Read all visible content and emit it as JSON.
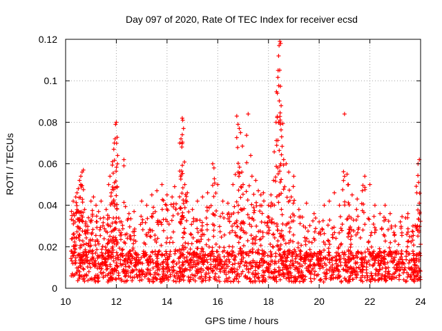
{
  "chart_data": {
    "type": "scatter",
    "title": "Day 097 of 2020, Rate Of TEC Index for receiver ecsd",
    "xlabel": "GPS time / hours",
    "ylabel": "ROTI / TECUs",
    "xlim": [
      10,
      24
    ],
    "ylim": [
      0,
      0.12
    ],
    "xticks": [
      "10",
      "12",
      "14",
      "16",
      "18",
      "20",
      "22",
      "24"
    ],
    "yticks": [
      "0",
      "0.02",
      "0.04",
      "0.06",
      "0.08",
      "0.1",
      "0.12"
    ],
    "grid": true,
    "marker": "+",
    "color": "#ff0000",
    "points": [
      [
        10.3,
        0.042
      ],
      [
        10.3,
        0.026
      ],
      [
        10.35,
        0.035
      ],
      [
        10.4,
        0.044
      ],
      [
        10.45,
        0.046
      ],
      [
        10.5,
        0.048
      ],
      [
        10.55,
        0.052
      ],
      [
        10.6,
        0.054
      ],
      [
        10.6,
        0.05
      ],
      [
        10.65,
        0.056
      ],
      [
        10.7,
        0.057
      ],
      [
        10.75,
        0.038
      ],
      [
        10.8,
        0.03
      ],
      [
        10.9,
        0.034
      ],
      [
        11.0,
        0.042
      ],
      [
        11.1,
        0.044
      ],
      [
        11.2,
        0.04
      ],
      [
        11.3,
        0.037
      ],
      [
        11.4,
        0.042
      ],
      [
        11.5,
        0.034
      ],
      [
        11.6,
        0.038
      ],
      [
        11.7,
        0.05
      ],
      [
        11.75,
        0.054
      ],
      [
        11.8,
        0.046
      ],
      [
        11.85,
        0.061
      ],
      [
        11.9,
        0.067
      ],
      [
        11.92,
        0.07
      ],
      [
        11.95,
        0.072
      ],
      [
        11.97,
        0.079
      ],
      [
        12.0,
        0.08
      ],
      [
        12.05,
        0.064
      ],
      [
        12.2,
        0.032
      ],
      [
        12.3,
        0.062
      ],
      [
        12.3,
        0.059
      ],
      [
        12.5,
        0.036
      ],
      [
        12.7,
        0.037
      ],
      [
        13.0,
        0.042
      ],
      [
        13.2,
        0.04
      ],
      [
        13.4,
        0.045
      ],
      [
        13.6,
        0.047
      ],
      [
        13.8,
        0.05
      ],
      [
        14.0,
        0.045
      ],
      [
        14.2,
        0.044
      ],
      [
        14.3,
        0.049
      ],
      [
        14.5,
        0.07
      ],
      [
        14.55,
        0.072
      ],
      [
        14.6,
        0.074
      ],
      [
        14.6,
        0.082
      ],
      [
        14.62,
        0.081
      ],
      [
        14.65,
        0.077
      ],
      [
        14.7,
        0.05
      ],
      [
        14.8,
        0.046
      ],
      [
        15.0,
        0.038
      ],
      [
        15.2,
        0.042
      ],
      [
        15.4,
        0.044
      ],
      [
        15.6,
        0.046
      ],
      [
        15.8,
        0.06
      ],
      [
        15.85,
        0.058
      ],
      [
        16.0,
        0.05
      ],
      [
        16.2,
        0.042
      ],
      [
        16.4,
        0.041
      ],
      [
        16.6,
        0.05
      ],
      [
        16.75,
        0.083
      ],
      [
        16.8,
        0.079
      ],
      [
        16.85,
        0.077
      ],
      [
        16.9,
        0.075
      ],
      [
        16.95,
        0.056
      ],
      [
        17.0,
        0.05
      ],
      [
        17.2,
        0.084
      ],
      [
        17.3,
        0.064
      ],
      [
        17.35,
        0.054
      ],
      [
        17.5,
        0.052
      ],
      [
        17.6,
        0.047
      ],
      [
        17.7,
        0.045
      ],
      [
        17.8,
        0.046
      ],
      [
        18.0,
        0.04
      ],
      [
        18.1,
        0.045
      ],
      [
        18.2,
        0.052
      ],
      [
        18.3,
        0.08
      ],
      [
        18.35,
        0.094
      ],
      [
        18.38,
        0.105
      ],
      [
        18.4,
        0.112
      ],
      [
        18.42,
        0.117
      ],
      [
        18.45,
        0.119
      ],
      [
        18.48,
        0.118
      ],
      [
        18.5,
        0.088
      ],
      [
        18.52,
        0.073
      ],
      [
        18.6,
        0.062
      ],
      [
        18.7,
        0.06
      ],
      [
        18.8,
        0.056
      ],
      [
        18.9,
        0.044
      ],
      [
        19.0,
        0.054
      ],
      [
        19.2,
        0.038
      ],
      [
        19.5,
        0.041
      ],
      [
        19.8,
        0.036
      ],
      [
        20.0,
        0.032
      ],
      [
        20.2,
        0.04
      ],
      [
        20.4,
        0.042
      ],
      [
        20.6,
        0.046
      ],
      [
        20.8,
        0.04
      ],
      [
        21.0,
        0.084
      ],
      [
        21.1,
        0.055
      ],
      [
        21.15,
        0.05
      ],
      [
        21.3,
        0.045
      ],
      [
        21.5,
        0.043
      ],
      [
        21.7,
        0.047
      ],
      [
        21.8,
        0.054
      ],
      [
        22.0,
        0.05
      ],
      [
        22.2,
        0.04
      ],
      [
        22.4,
        0.036
      ],
      [
        22.6,
        0.04
      ],
      [
        22.8,
        0.036
      ],
      [
        23.0,
        0.03
      ],
      [
        23.2,
        0.032
      ],
      [
        23.5,
        0.036
      ],
      [
        23.7,
        0.03
      ],
      [
        23.85,
        0.046
      ],
      [
        23.9,
        0.06
      ],
      [
        23.95,
        0.062
      ],
      [
        23.95,
        0.041
      ]
    ],
    "baseline_band": {
      "x_start": 10.2,
      "x_end": 24.0,
      "low": 0.003,
      "high": 0.018,
      "spike_high": 0.035
    },
    "baseline_count": 1600
  }
}
